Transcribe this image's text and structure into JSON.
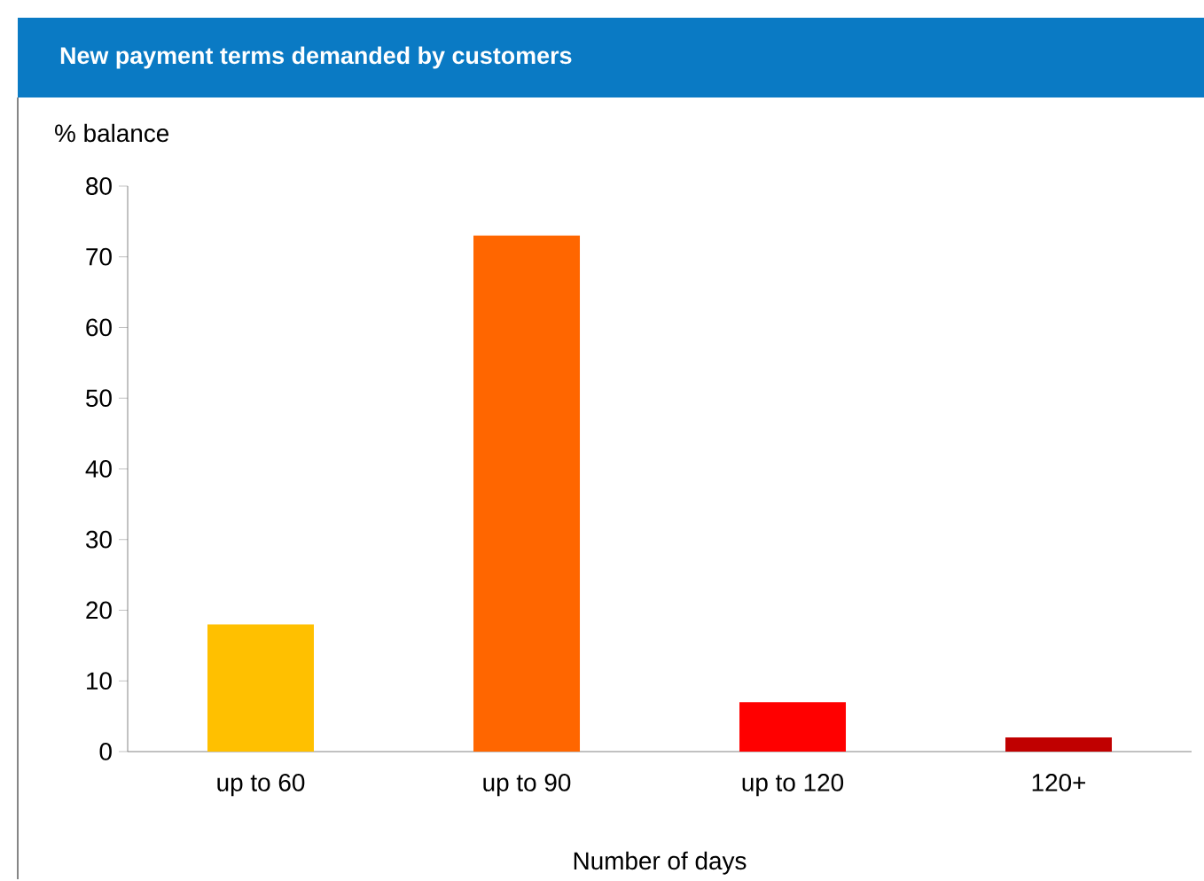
{
  "chart_data": {
    "type": "bar",
    "title": "New payment terms demanded by customers",
    "ylabel": "% balance",
    "xlabel": "Number of days",
    "categories": [
      "up to 60",
      "up to 90",
      "up to 120",
      "120+"
    ],
    "values": [
      18,
      73,
      7,
      2
    ],
    "colors": [
      "#ffc000",
      "#ff6600",
      "#ff0000",
      "#c00000"
    ],
    "ylim": [
      0,
      80
    ],
    "yticks": [
      0,
      10,
      20,
      30,
      40,
      50,
      60,
      70,
      80
    ]
  }
}
